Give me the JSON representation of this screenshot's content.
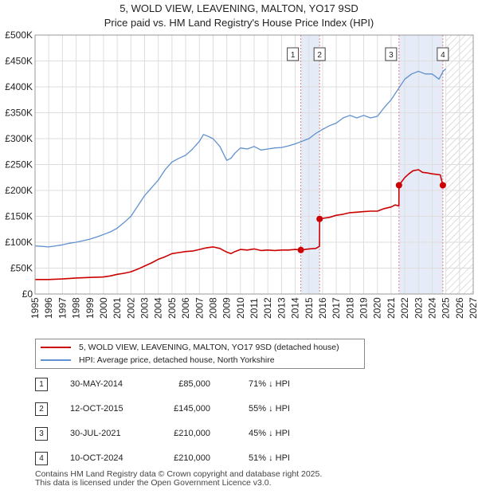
{
  "title_line1": "5, WOLD VIEW, LEAVENING, MALTON, YO17 9SD",
  "title_line2": "Price paid vs. HM Land Registry's House Price Index (HPI)",
  "colors": {
    "property": "#cc0000",
    "hpi": "#6090d0",
    "shade": "#e6ecf7",
    "marker_line": "#e08080"
  },
  "chart_data": {
    "type": "line",
    "title": "5, WOLD VIEW, LEAVENING, MALTON, YO17 9SD",
    "xlim": [
      1995,
      2027
    ],
    "ylim": [
      0,
      500000
    ],
    "x_ticks": [
      "1995",
      "1996",
      "1997",
      "1998",
      "1999",
      "2000",
      "2001",
      "2002",
      "2003",
      "2004",
      "2005",
      "2006",
      "2007",
      "2008",
      "2009",
      "2010",
      "2011",
      "2012",
      "2013",
      "2014",
      "2015",
      "2016",
      "2017",
      "2018",
      "2019",
      "2020",
      "2021",
      "2022",
      "2023",
      "2024",
      "2025",
      "2026",
      "2027"
    ],
    "y_ticks": [
      {
        "value": 0,
        "label": "£0"
      },
      {
        "value": 50000,
        "label": "£50K"
      },
      {
        "value": 100000,
        "label": "£100K"
      },
      {
        "value": 150000,
        "label": "£150K"
      },
      {
        "value": 200000,
        "label": "£200K"
      },
      {
        "value": 250000,
        "label": "£250K"
      },
      {
        "value": 300000,
        "label": "£300K"
      },
      {
        "value": 350000,
        "label": "£350K"
      },
      {
        "value": 400000,
        "label": "£400K"
      },
      {
        "value": 450000,
        "label": "£450K"
      },
      {
        "value": 500000,
        "label": "£500K"
      }
    ],
    "grid": true,
    "shaded_regions": [
      [
        2014.41,
        2015.78
      ],
      [
        2021.58,
        2024.78
      ]
    ],
    "hatched_region": [
      2025.0,
      2027
    ],
    "series": [
      {
        "name": "hpi",
        "x": [
          1995.0,
          1995.5,
          1996.0,
          1996.5,
          1997.0,
          1997.5,
          1998.0,
          1998.5,
          1999.0,
          1999.5,
          2000.0,
          2000.5,
          2001.0,
          2001.5,
          2002.0,
          2002.5,
          2003.0,
          2003.5,
          2004.0,
          2004.5,
          2005.0,
          2005.5,
          2006.0,
          2006.5,
          2007.0,
          2007.3,
          2007.6,
          2008.0,
          2008.5,
          2009.0,
          2009.3,
          2009.6,
          2010.0,
          2010.5,
          2011.0,
          2011.5,
          2012.0,
          2012.5,
          2013.0,
          2013.5,
          2014.0,
          2014.5,
          2015.0,
          2015.5,
          2016.0,
          2016.5,
          2017.0,
          2017.5,
          2018.0,
          2018.5,
          2019.0,
          2019.5,
          2020.0,
          2020.5,
          2021.0,
          2021.5,
          2022.0,
          2022.5,
          2023.0,
          2023.5,
          2024.0,
          2024.5,
          2024.8,
          2025.0
        ],
        "values": [
          93000,
          92000,
          91000,
          93000,
          95000,
          98000,
          100000,
          103000,
          106000,
          110000,
          115000,
          120000,
          127000,
          138000,
          150000,
          170000,
          190000,
          205000,
          220000,
          240000,
          255000,
          262000,
          268000,
          280000,
          295000,
          308000,
          305000,
          300000,
          285000,
          258000,
          262000,
          272000,
          282000,
          280000,
          285000,
          278000,
          280000,
          282000,
          283000,
          286000,
          290000,
          295000,
          300000,
          310000,
          318000,
          325000,
          330000,
          340000,
          345000,
          340000,
          345000,
          340000,
          343000,
          360000,
          375000,
          395000,
          415000,
          425000,
          430000,
          425000,
          425000,
          415000,
          430000,
          435000
        ]
      },
      {
        "name": "property",
        "x": [
          1995.0,
          1996.0,
          1997.0,
          1998.0,
          1999.0,
          2000.0,
          2000.5,
          2001.0,
          2001.5,
          2002.0,
          2002.5,
          2003.0,
          2003.5,
          2004.0,
          2004.5,
          2005.0,
          2005.5,
          2006.0,
          2006.5,
          2007.0,
          2007.5,
          2008.0,
          2008.5,
          2009.0,
          2009.3,
          2009.6,
          2010.0,
          2010.5,
          2011.0,
          2011.5,
          2012.0,
          2012.5,
          2013.0,
          2013.5,
          2014.0,
          2014.41,
          2014.7,
          2015.0,
          2015.5,
          2015.77,
          2015.78,
          2016.0,
          2016.5,
          2017.0,
          2017.5,
          2018.0,
          2018.5,
          2019.0,
          2019.5,
          2020.0,
          2020.5,
          2021.0,
          2021.3,
          2021.57,
          2021.58,
          2022.0,
          2022.3,
          2022.6,
          2023.0,
          2023.3,
          2023.6,
          2024.0,
          2024.3,
          2024.6,
          2024.78,
          2025.0
        ],
        "values": [
          28000,
          28000,
          29000,
          31000,
          32000,
          33000,
          35000,
          38000,
          40000,
          43000,
          48000,
          54000,
          60000,
          67000,
          72000,
          78000,
          80000,
          82000,
          83000,
          86000,
          89000,
          91000,
          88000,
          81000,
          78000,
          82000,
          86000,
          85000,
          87000,
          84000,
          85000,
          84000,
          85000,
          85000,
          86000,
          85000,
          86000,
          87000,
          88000,
          92000,
          145000,
          146000,
          148000,
          152000,
          154000,
          157000,
          158000,
          159000,
          160000,
          160000,
          165000,
          168000,
          172000,
          170000,
          210000,
          225000,
          232000,
          238000,
          240000,
          235000,
          234000,
          232000,
          231000,
          230000,
          210000,
          213000
        ]
      }
    ],
    "sale_markers": [
      {
        "label": "1",
        "x": 2014.41,
        "value": 85000
      },
      {
        "label": "2",
        "x": 2015.78,
        "value": 145000
      },
      {
        "label": "3",
        "x": 2021.58,
        "value": 210000
      },
      {
        "label": "4",
        "x": 2024.78,
        "value": 210000
      }
    ]
  },
  "legend": {
    "property_label": "5, WOLD VIEW, LEAVENING, MALTON, YO17 9SD (detached house)",
    "hpi_label": "HPI: Average price, detached house, North Yorkshire"
  },
  "sales": [
    {
      "num": "1",
      "date": "30-MAY-2014",
      "price": "£85,000",
      "delta": "71% ↓ HPI"
    },
    {
      "num": "2",
      "date": "12-OCT-2015",
      "price": "£145,000",
      "delta": "55% ↓ HPI"
    },
    {
      "num": "3",
      "date": "30-JUL-2021",
      "price": "£210,000",
      "delta": "45% ↓ HPI"
    },
    {
      "num": "4",
      "date": "10-OCT-2024",
      "price": "£210,000",
      "delta": "51% ↓ HPI"
    }
  ],
  "footer_line1": "Contains HM Land Registry data © Crown copyright and database right 2025.",
  "footer_line2": "This data is licensed under the Open Government Licence v3.0."
}
